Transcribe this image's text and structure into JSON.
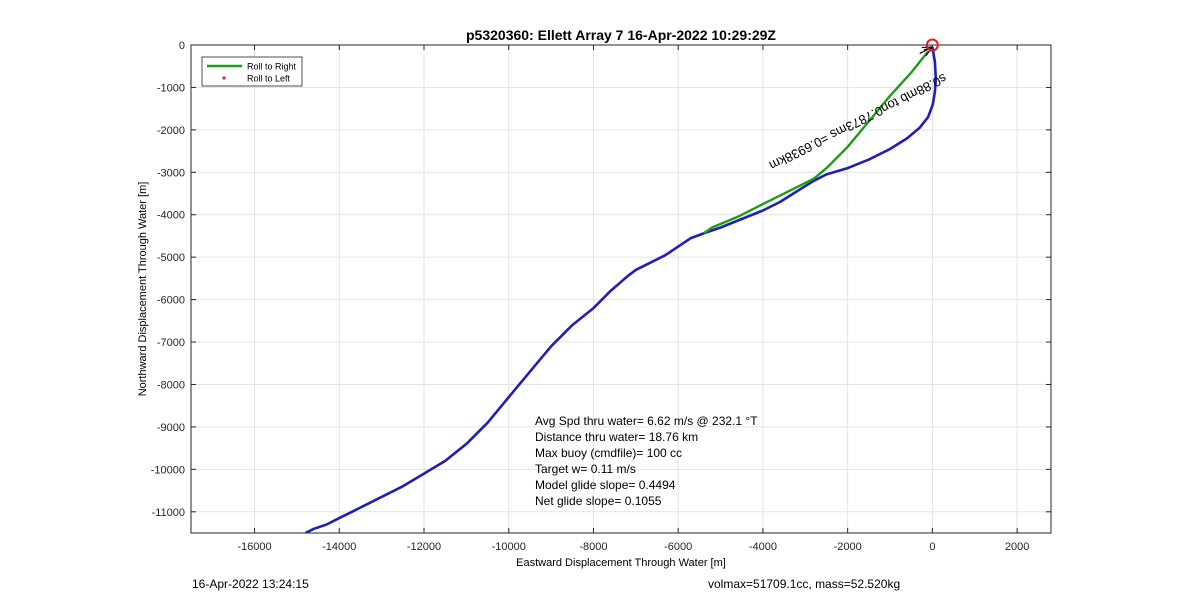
{
  "chart_data": {
    "type": "line",
    "title": "p5320360: Ellett Array 7 16-Apr-2022 10:29:29Z",
    "xlabel": "Eastward Displacement Through Water [m]",
    "ylabel": "Northward Displacement Through Water [m]",
    "xlim": [
      -17500,
      2800
    ],
    "ylim": [
      -11500,
      0
    ],
    "xticks": [
      -16000,
      -14000,
      -12000,
      -10000,
      -8000,
      -6000,
      -4000,
      -2000,
      0,
      2000
    ],
    "yticks": [
      0,
      -1000,
      -2000,
      -3000,
      -4000,
      -5000,
      -6000,
      -7000,
      -8000,
      -9000,
      -10000,
      -11000
    ],
    "grid": true,
    "legend": {
      "placement": "top-left",
      "entries": [
        {
          "label": "Roll to Right",
          "color": "#1a9e1a",
          "style": "line"
        },
        {
          "label": "Roll to Left",
          "color": "#e02020",
          "style": "dot"
        }
      ]
    },
    "series": [
      {
        "color": "#1f1fb8",
        "x": [
          0,
          20,
          60,
          80,
          60,
          10,
          -100,
          -300,
          -600,
          -1000,
          -1500,
          -2000,
          -2500,
          -2800,
          -3200,
          -3600,
          -4000,
          -4500,
          -5000,
          -5400,
          -5700,
          -6000,
          -6300,
          -6600,
          -6800,
          -7000,
          -7200,
          -7600,
          -8000,
          -8500,
          -9000,
          -9500,
          -10000,
          -10500,
          -11000,
          -11500,
          -12000,
          -12500,
          -13000,
          -13300,
          -13500,
          -13700,
          -14000,
          -14300,
          -14600,
          -14800
        ],
        "y": [
          -50,
          -150,
          -400,
          -800,
          -1100,
          -1400,
          -1700,
          -1950,
          -2200,
          -2450,
          -2700,
          -2900,
          -3050,
          -3200,
          -3450,
          -3700,
          -3900,
          -4100,
          -4300,
          -4440,
          -4550,
          -4750,
          -4950,
          -5100,
          -5200,
          -5300,
          -5450,
          -5800,
          -6200,
          -6600,
          -7100,
          -7700,
          -8300,
          -8900,
          -9400,
          -9800,
          -10100,
          -10400,
          -10650,
          -10800,
          -10900,
          -11000,
          -11150,
          -11300,
          -11400,
          -11500
        ]
      },
      {
        "color": "#1a9e1a",
        "x": [
          -100,
          -500,
          -1000,
          -1500,
          -2000,
          -2500,
          -2800,
          -3300,
          -4000,
          -4600,
          -5200,
          -5400
        ],
        "y": [
          -150,
          -650,
          -1200,
          -1800,
          -2400,
          -2900,
          -3150,
          -3400,
          -3750,
          -4050,
          -4300,
          -4440
        ]
      }
    ],
    "annotations": {
      "rotated_text": "s0.88mb ton0.7873ms =0.6938km",
      "stats": [
        "Avg Spd thru water=  6.62 m/s @ 232.1 °T",
        "Distance thru water= 18.76 km",
        "Max buoy (cmdfile)= 100 cc",
        "Target w= 0.11 m/s",
        "Model glide slope= 0.4494",
        "Net glide slope= 0.1055"
      ]
    }
  },
  "footer": {
    "timestamp": "16-Apr-2022 13:24:15",
    "vol_mass": "volmax=51709.1cc, mass=52.520kg"
  }
}
